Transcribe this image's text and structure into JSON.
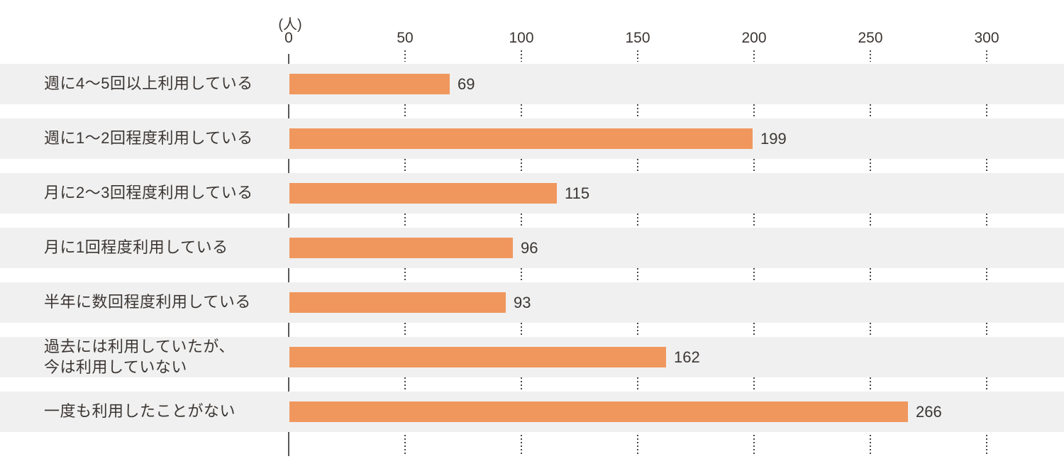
{
  "chart_data": {
    "type": "bar",
    "orientation": "horizontal",
    "title": "",
    "unit_label": "(人)",
    "categories": [
      "週に4〜5回以上利用している",
      "週に1〜2回程度利用している",
      "月に2〜3回程度利用している",
      "月に1回程度利用している",
      "半年に数回程度利用している",
      "過去には利用していたが、\n今は利用していない",
      "一度も利用したことがない"
    ],
    "values": [
      69,
      199,
      115,
      96,
      93,
      162,
      266
    ],
    "xlabel": "",
    "ylabel": "",
    "xlim": [
      0,
      300
    ],
    "xticks": [
      0,
      50,
      100,
      150,
      200,
      250,
      300
    ],
    "grid": "dotted-vertical-segments-in-row-gaps",
    "legend": "none",
    "colors": {
      "bar": "#F0975E",
      "row_stripe": "#F0F0F0",
      "text": "#3B3633",
      "axis_line": "#595757",
      "grid_dots": "#4A4745",
      "background": "#FFFFFF"
    }
  }
}
